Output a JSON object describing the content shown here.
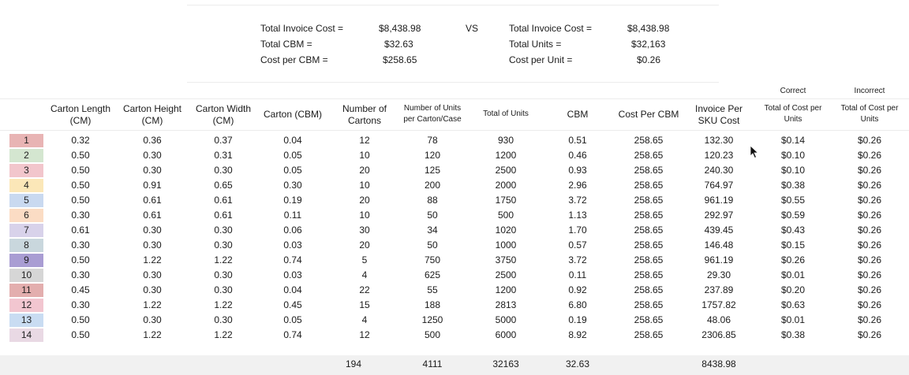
{
  "summary": {
    "left": [
      {
        "label": "Total Invoice Cost =",
        "value": "$8,438.98"
      },
      {
        "label": "Total CBM =",
        "value": "$32.63"
      },
      {
        "label": "Cost per CBM =",
        "value": "$258.65"
      }
    ],
    "vs": "VS",
    "right": [
      {
        "label": "Total Invoice Cost =",
        "value": "$8,438.98"
      },
      {
        "label": "Total Units =",
        "value": "$32,163"
      },
      {
        "label": "Cost per Unit =",
        "value": "$0.26"
      }
    ]
  },
  "group_labels": {
    "correct": "Correct",
    "incorrect": "Incorrect"
  },
  "headers": [
    {
      "l1": "Carton Length",
      "l2": "(CM)"
    },
    {
      "l1": "Carton Height",
      "l2": "(CM)"
    },
    {
      "l1": "Carton Width",
      "l2": "(CM)"
    },
    {
      "l1": "Carton (CBM)",
      "l2": ""
    },
    {
      "l1": "Number of",
      "l2": "Cartons"
    },
    {
      "l1": "Number of Units",
      "l2": "per Carton/Case"
    },
    {
      "l1": "Total of Units",
      "l2": ""
    },
    {
      "l1": "CBM",
      "l2": ""
    },
    {
      "l1": "Cost Per CBM",
      "l2": ""
    },
    {
      "l1": "Invoice Per",
      "l2": "SKU Cost"
    },
    {
      "l1": "Total of Cost per",
      "l2": "Units"
    },
    {
      "l1": "Total of Cost per",
      "l2": "Units"
    }
  ],
  "rows": [
    {
      "id": "1",
      "color": "#e8b4b4",
      "cells": [
        "0.32",
        "0.36",
        "0.37",
        "0.04",
        "12",
        "78",
        "930",
        "0.51",
        "258.65",
        "132.30",
        "$0.14",
        "$0.26"
      ]
    },
    {
      "id": "2",
      "color": "#d4e6d0",
      "cells": [
        "0.50",
        "0.30",
        "0.31",
        "0.05",
        "10",
        "120",
        "1200",
        "0.46",
        "258.65",
        "120.23",
        "$0.10",
        "$0.26"
      ]
    },
    {
      "id": "3",
      "color": "#f2c6cc",
      "cells": [
        "0.50",
        "0.30",
        "0.30",
        "0.05",
        "20",
        "125",
        "2500",
        "0.93",
        "258.65",
        "240.30",
        "$0.10",
        "$0.26"
      ]
    },
    {
      "id": "4",
      "color": "#fbe7b8",
      "cells": [
        "0.50",
        "0.91",
        "0.65",
        "0.30",
        "10",
        "200",
        "2000",
        "2.96",
        "258.65",
        "764.97",
        "$0.38",
        "$0.26"
      ]
    },
    {
      "id": "5",
      "color": "#c9d9f0",
      "cells": [
        "0.50",
        "0.61",
        "0.61",
        "0.19",
        "20",
        "88",
        "1750",
        "3.72",
        "258.65",
        "961.19",
        "$0.55",
        "$0.26"
      ]
    },
    {
      "id": "6",
      "color": "#fbdcc4",
      "cells": [
        "0.30",
        "0.61",
        "0.61",
        "0.11",
        "10",
        "50",
        "500",
        "1.13",
        "258.65",
        "292.97",
        "$0.59",
        "$0.26"
      ]
    },
    {
      "id": "7",
      "color": "#d8d2ea",
      "cells": [
        "0.61",
        "0.30",
        "0.30",
        "0.06",
        "30",
        "34",
        "1020",
        "1.70",
        "258.65",
        "439.45",
        "$0.43",
        "$0.26"
      ]
    },
    {
      "id": "8",
      "color": "#c9d7dd",
      "cells": [
        "0.30",
        "0.30",
        "0.30",
        "0.03",
        "20",
        "50",
        "1000",
        "0.57",
        "258.65",
        "146.48",
        "$0.15",
        "$0.26"
      ]
    },
    {
      "id": "9",
      "color": "#a99dd3",
      "cells": [
        "0.50",
        "1.22",
        "1.22",
        "0.74",
        "5",
        "750",
        "3750",
        "3.72",
        "258.65",
        "961.19",
        "$0.26",
        "$0.26"
      ]
    },
    {
      "id": "10",
      "color": "#d6d6d6",
      "cells": [
        "0.30",
        "0.30",
        "0.30",
        "0.03",
        "4",
        "625",
        "2500",
        "0.11",
        "258.65",
        "29.30",
        "$0.01",
        "$0.26"
      ]
    },
    {
      "id": "11",
      "color": "#e3aeae",
      "cells": [
        "0.45",
        "0.30",
        "0.30",
        "0.04",
        "22",
        "55",
        "1200",
        "0.92",
        "258.65",
        "237.89",
        "$0.20",
        "$0.26"
      ]
    },
    {
      "id": "12",
      "color": "#f2c6d0",
      "cells": [
        "0.30",
        "1.22",
        "1.22",
        "0.45",
        "15",
        "188",
        "2813",
        "6.80",
        "258.65",
        "1757.82",
        "$0.63",
        "$0.26"
      ]
    },
    {
      "id": "13",
      "color": "#c9dcf2",
      "cells": [
        "0.50",
        "0.30",
        "0.30",
        "0.05",
        "4",
        "1250",
        "5000",
        "0.19",
        "258.65",
        "48.06",
        "$0.01",
        "$0.26"
      ]
    },
    {
      "id": "14",
      "color": "#e9d9e4",
      "cells": [
        "0.50",
        "1.22",
        "1.22",
        "0.74",
        "12",
        "500",
        "6000",
        "8.92",
        "258.65",
        "2306.85",
        "$0.38",
        "$0.26"
      ]
    }
  ],
  "totals": {
    "cartons": "194",
    "units_per_carton": "4111",
    "total_units": "32163",
    "cbm": "32.63",
    "invoice": "8438.98"
  }
}
